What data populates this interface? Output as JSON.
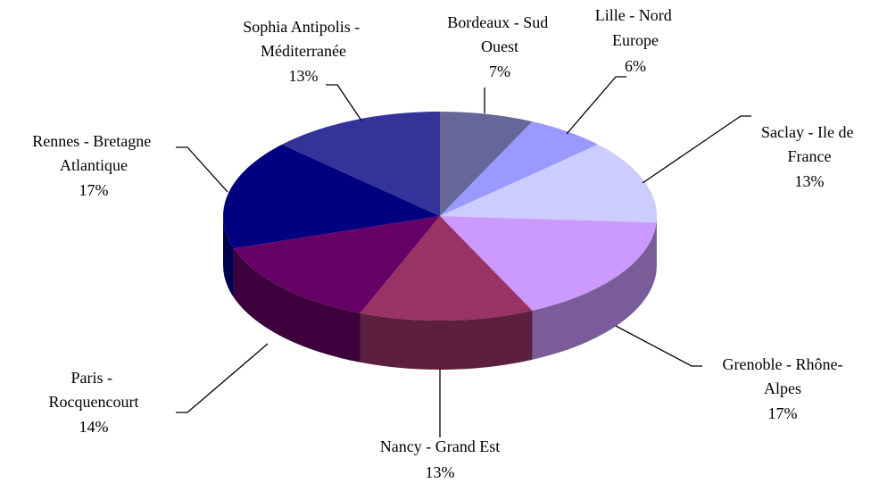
{
  "chart_data": {
    "type": "pie",
    "categories": [
      "Bordeaux - Sud Ouest",
      "Lille - Nord Europe",
      "Saclay - Ile de France",
      "Grenoble - Rhône-Alpes",
      "Nancy - Grand Est",
      "Paris - Rocquencourt",
      "Rennes - Bretagne Atlantique",
      "Sophia Antipolis - Méditerranée"
    ],
    "values": [
      7,
      6,
      13,
      17,
      13,
      14,
      17,
      13
    ],
    "value_labels": [
      "7%",
      "6%",
      "13%",
      "17%",
      "13%",
      "14%",
      "17%",
      "13%"
    ],
    "colors": [
      "#666699",
      "#9999ff",
      "#ccccff",
      "#cc99ff",
      "#993366",
      "#660066",
      "#000080",
      "#333399"
    ]
  }
}
